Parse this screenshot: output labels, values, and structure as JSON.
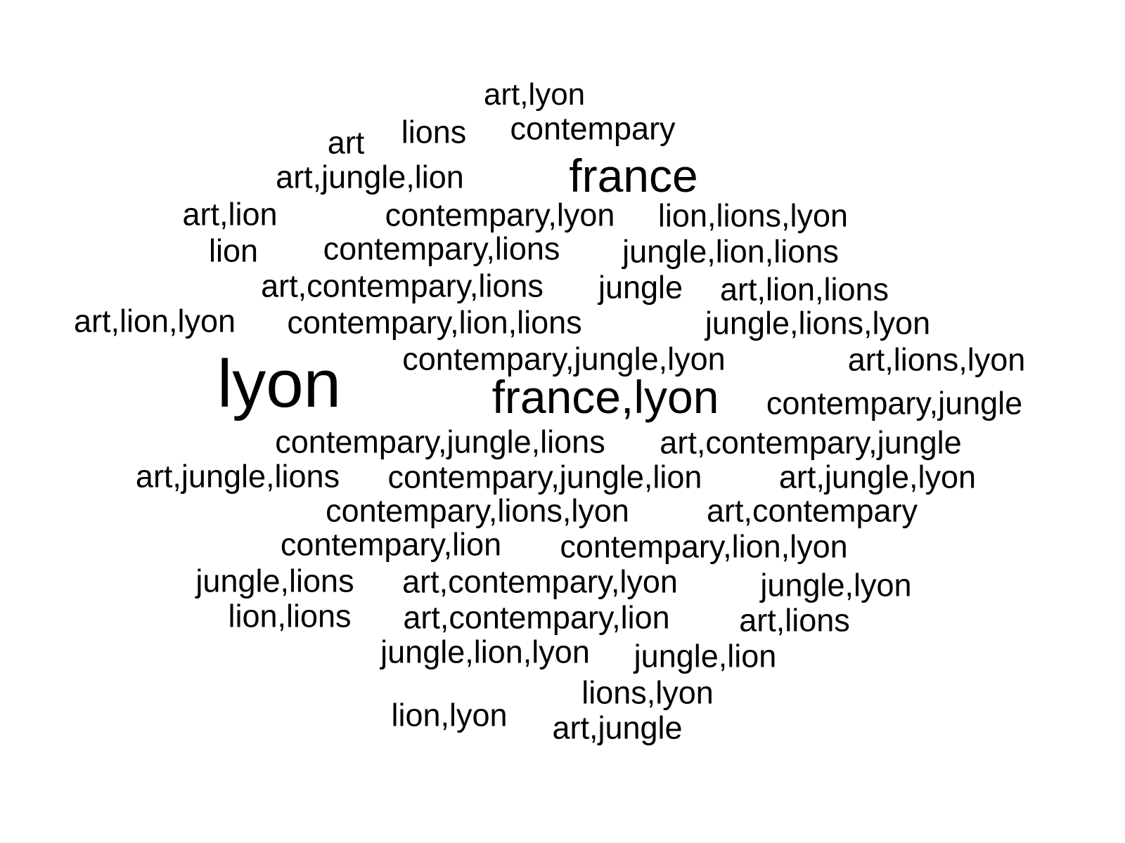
{
  "background_color": "#ffffff",
  "text_color": "#000000",
  "words": [
    {
      "text": "art,lyon"
    },
    {
      "text": "lions"
    },
    {
      "text": "contempary"
    },
    {
      "text": "art"
    },
    {
      "text": "art,jungle,lion"
    },
    {
      "text": "france"
    },
    {
      "text": "art,lion"
    },
    {
      "text": "contempary,lyon"
    },
    {
      "text": "lion,lions,lyon"
    },
    {
      "text": "lion"
    },
    {
      "text": "contempary,lions"
    },
    {
      "text": "jungle,lion,lions"
    },
    {
      "text": "art,contempary,lions"
    },
    {
      "text": "jungle"
    },
    {
      "text": "art,lion,lions"
    },
    {
      "text": "art,lion,lyon"
    },
    {
      "text": "contempary,lion,lions"
    },
    {
      "text": "jungle,lions,lyon"
    },
    {
      "text": "contempary,jungle,lyon"
    },
    {
      "text": "art,lions,lyon"
    },
    {
      "text": "lyon"
    },
    {
      "text": "france,lyon"
    },
    {
      "text": "contempary,jungle"
    },
    {
      "text": "contempary,jungle,lions"
    },
    {
      "text": "art,contempary,jungle"
    },
    {
      "text": "art,jungle,lions"
    },
    {
      "text": "contempary,jungle,lion"
    },
    {
      "text": "art,jungle,lyon"
    },
    {
      "text": "contempary,lions,lyon"
    },
    {
      "text": "art,contempary"
    },
    {
      "text": "contempary,lion"
    },
    {
      "text": "contempary,lion,lyon"
    },
    {
      "text": "jungle,lions"
    },
    {
      "text": "art,contempary,lyon"
    },
    {
      "text": "jungle,lyon"
    },
    {
      "text": "lion,lions"
    },
    {
      "text": "art,contempary,lion"
    },
    {
      "text": "art,lions"
    },
    {
      "text": "jungle,lion,lyon"
    },
    {
      "text": "jungle,lion"
    },
    {
      "text": "lions,lyon"
    },
    {
      "text": "lion,lyon"
    },
    {
      "text": "art,jungle"
    }
  ]
}
